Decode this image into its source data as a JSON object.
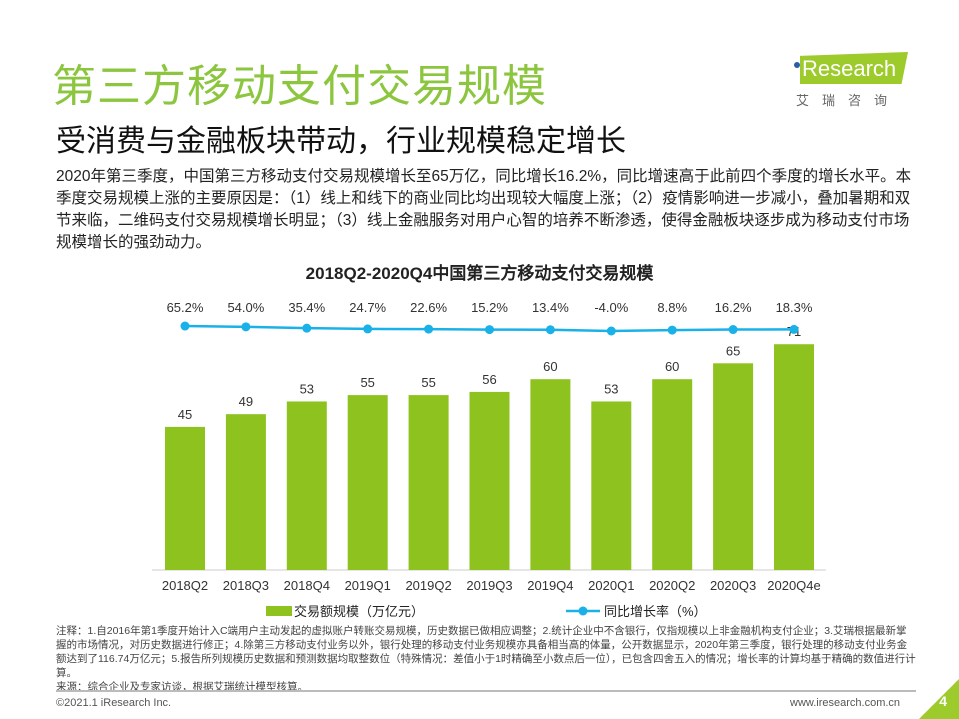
{
  "title": "第三方移动支付交易规模",
  "subtitle": "受消费与金融板块带动，行业规模稳定增长",
  "description": "2020年第三季度，中国第三方移动支付交易规模增长至65万亿，同比增长16.2%，同比增速高于此前四个季度的增长水平。本季度交易规模上涨的主要原因是：（1）线上和线下的商业同比均出现较大幅度上涨；（2）疫情影响进一步减小，叠加暑期和双节来临，二维码支付交易规模增长明显；（3）线上金融服务对用户心智的培养不断渗透，使得金融板块逐步成为移动支付市场规模增长的强劲动力。",
  "logo": {
    "text": "iResearch",
    "cn": "艾瑞咨询"
  },
  "chart_data": {
    "type": "bar",
    "title": "2018Q2-2020Q4中国第三方移动支付交易规模",
    "categories": [
      "2018Q2",
      "2018Q3",
      "2018Q4",
      "2019Q1",
      "2019Q2",
      "2019Q3",
      "2019Q4",
      "2020Q1",
      "2020Q2",
      "2020Q3",
      "2020Q4e"
    ],
    "series": [
      {
        "name": "交易额规模（万亿元）",
        "type": "bar",
        "color": "#8dc21f",
        "values": [
          45,
          49,
          53,
          55,
          55,
          56,
          60,
          53,
          60,
          65,
          71
        ]
      },
      {
        "name": "同比增长率（%）",
        "type": "line",
        "axis": "secondary",
        "color": "#1ab1e8",
        "values": [
          65.2,
          54.0,
          35.4,
          24.7,
          22.6,
          15.2,
          13.4,
          -4.0,
          8.8,
          16.2,
          18.3
        ],
        "labels": [
          "65.2%",
          "54.0%",
          "35.4%",
          "24.7%",
          "22.6%",
          "15.2%",
          "13.4%",
          "-4.0%",
          "8.8%",
          "16.2%",
          "18.3%"
        ]
      }
    ],
    "grid": false,
    "legend": "bottom"
  },
  "notes": "注释：1.自2016年第1季度开始计入C端用户主动发起的虚拟账户转账交易规模，历史数据已做相应调整；2.统计企业中不含银行，仅指规模以上非金融机构支付企业；3.艾瑞根据最新掌握的市场情况，对历史数据进行修正；4.除第三方移动支付业务以外，银行处理的移动支付业务规模亦具备相当高的体量，公开数据显示，2020年第三季度，银行处理的移动支付业务金额达到了116.74万亿元；5.报告所列规模历史数据和预测数据均取整数位（特殊情况：差值小于1时精确至小数点后一位），已包含四舍五入的情况；增长率的计算均基于精确的数值进行计算。",
  "source": "来源：综合企业及专家访谈，根据艾瑞统计模型核算。",
  "copyright": "©2021.1 iResearch Inc.",
  "site": "www.iresearch.com.cn",
  "page": "4"
}
